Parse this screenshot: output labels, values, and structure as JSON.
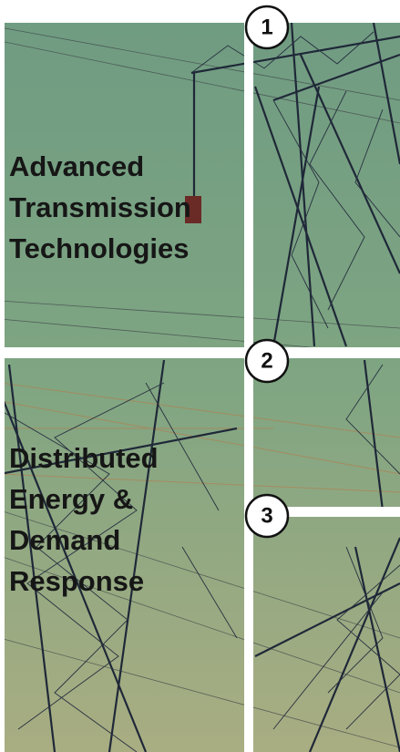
{
  "panels": [
    {
      "lines": [
        "Advanced",
        "Transmission",
        "Technologies"
      ]
    },
    {
      "lines": [
        "Distributed",
        "Energy &",
        "Demand",
        "Response"
      ]
    }
  ],
  "markers": [
    "1",
    "2",
    "3"
  ]
}
